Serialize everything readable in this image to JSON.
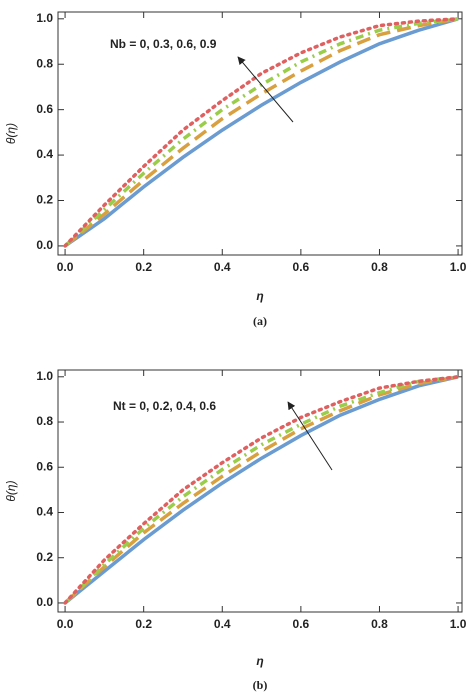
{
  "chart_data": [
    {
      "type": "line",
      "panel_label": "(a)",
      "annotation": "Nb = 0,  0.3, 0.6, 0.9",
      "xlabel": "η",
      "ylabel": "θ(η)",
      "x": [
        0,
        0.1,
        0.2,
        0.3,
        0.4,
        0.5,
        0.6,
        0.7,
        0.8,
        0.9,
        1.0
      ],
      "series": [
        {
          "color": "#6a9bd1",
          "style": "solid",
          "values": [
            0,
            0.12,
            0.26,
            0.39,
            0.51,
            0.62,
            0.72,
            0.81,
            0.89,
            0.95,
            1.0
          ]
        },
        {
          "color": "#d9a040",
          "style": "dashed",
          "values": [
            0,
            0.14,
            0.29,
            0.43,
            0.56,
            0.67,
            0.77,
            0.86,
            0.93,
            0.97,
            1.0
          ]
        },
        {
          "color": "#9acd4a",
          "style": "dotdash",
          "values": [
            0,
            0.16,
            0.32,
            0.47,
            0.6,
            0.71,
            0.81,
            0.89,
            0.95,
            0.98,
            1.0
          ]
        },
        {
          "color": "#e06060",
          "style": "dotted",
          "values": [
            0,
            0.18,
            0.35,
            0.51,
            0.64,
            0.76,
            0.85,
            0.92,
            0.97,
            0.99,
            1.0
          ]
        }
      ],
      "xlim": [
        -0.018,
        1.01
      ],
      "ylim": [
        -0.04,
        1.03
      ],
      "xticks": [
        {
          "value": 0,
          "label": "0.0"
        },
        {
          "value": 0.2,
          "label": "0.2"
        },
        {
          "value": 0.4,
          "label": "0.4"
        },
        {
          "value": 0.6,
          "label": "0.6"
        },
        {
          "value": 0.8,
          "label": "0.8"
        },
        {
          "value": 1,
          "label": "1.0"
        }
      ],
      "yticks": [
        {
          "value": 0,
          "label": "0.0"
        },
        {
          "value": 0.2,
          "label": "0.2"
        },
        {
          "value": 0.4,
          "label": "0.4"
        },
        {
          "value": 0.6,
          "label": "0.6"
        },
        {
          "value": 0.8,
          "label": "0.8"
        },
        {
          "value": 1,
          "label": "1.0"
        }
      ]
    },
    {
      "type": "line",
      "panel_label": "(b)",
      "annotation": "Nt = 0, 0.2, 0.4, 0.6",
      "xlabel": "η",
      "ylabel": "θ(η)",
      "x": [
        0,
        0.1,
        0.2,
        0.3,
        0.4,
        0.5,
        0.6,
        0.7,
        0.8,
        0.9,
        1.0
      ],
      "series": [
        {
          "color": "#6a9bd1",
          "style": "solid",
          "values": [
            0,
            0.14,
            0.28,
            0.41,
            0.53,
            0.64,
            0.74,
            0.83,
            0.9,
            0.96,
            1.0
          ]
        },
        {
          "color": "#d9a040",
          "style": "dashed",
          "values": [
            0,
            0.16,
            0.31,
            0.44,
            0.56,
            0.67,
            0.77,
            0.85,
            0.92,
            0.97,
            1.0
          ]
        },
        {
          "color": "#9acd4a",
          "style": "dotdash",
          "values": [
            0,
            0.17,
            0.33,
            0.47,
            0.59,
            0.7,
            0.79,
            0.87,
            0.93,
            0.98,
            1.0
          ]
        },
        {
          "color": "#e06060",
          "style": "dotted",
          "values": [
            0,
            0.19,
            0.35,
            0.5,
            0.62,
            0.73,
            0.82,
            0.89,
            0.95,
            0.98,
            1.0
          ]
        }
      ],
      "xlim": [
        -0.018,
        1.01
      ],
      "ylim": [
        -0.04,
        1.03
      ],
      "xticks": [
        {
          "value": 0,
          "label": "0.0"
        },
        {
          "value": 0.2,
          "label": "0.2"
        },
        {
          "value": 0.4,
          "label": "0.4"
        },
        {
          "value": 0.6,
          "label": "0.6"
        },
        {
          "value": 0.8,
          "label": "0.8"
        },
        {
          "value": 1,
          "label": "1.0"
        }
      ],
      "yticks": [
        {
          "value": 0,
          "label": "0.0"
        },
        {
          "value": 0.2,
          "label": "0.2"
        },
        {
          "value": 0.4,
          "label": "0.4"
        },
        {
          "value": 0.6,
          "label": "0.6"
        },
        {
          "value": 0.8,
          "label": "0.8"
        },
        {
          "value": 1,
          "label": "1.0"
        }
      ]
    }
  ]
}
